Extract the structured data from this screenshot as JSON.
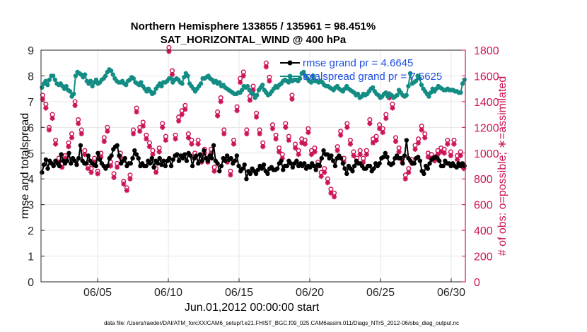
{
  "chart_data": {
    "type": "line",
    "title_line1": "Northern Hemisphere 133855 / 135961 = 98.451%",
    "title_line2": "SAT_HORIZONTAL_WIND @ 400 hPa",
    "xlabel": "Jun.01,2012 00:00:00 start",
    "ylabel_left": "rmse and totalspread",
    "ylabel_right": "# of obs: o=possible; ∗=assimilated",
    "footer": "data file: /Users/raeder/DAI/ATM_forcXX/CAM6_setup/f.e21.FHIST_BGC.f09_025.CAM6assim.011/Diags_NTrS_2012-06/obs_diag_output.nc",
    "x_ticks": [
      {
        "day": 5,
        "label": "06/05"
      },
      {
        "day": 10,
        "label": "06/10"
      },
      {
        "day": 15,
        "label": "06/15"
      },
      {
        "day": 20,
        "label": "06/20"
      },
      {
        "day": 25,
        "label": "06/25"
      },
      {
        "day": 30,
        "label": "06/30"
      }
    ],
    "xlim": [
      1,
      31
    ],
    "ylim_left": [
      0,
      9
    ],
    "y_ticks_left": [
      "0",
      "1",
      "2",
      "3",
      "4",
      "5",
      "6",
      "7",
      "8",
      "9"
    ],
    "ylim_right": [
      0,
      1800
    ],
    "y_ticks_right": [
      "0",
      "200",
      "400",
      "600",
      "800",
      "1000",
      "1200",
      "1400",
      "1600",
      "1800"
    ],
    "grid": true,
    "legend": [
      {
        "label": "rmse grand pr = 4.6645",
        "color": "#000000"
      },
      {
        "label": "totalspread grand pr = 7.5625",
        "color": "#138c84"
      }
    ],
    "colors": {
      "rmse": "#000000",
      "spread": "#138c84",
      "obs": "#cc1459",
      "right_axis": "#cc1459"
    },
    "series": [
      {
        "name": "rmse",
        "axis": "left",
        "values": [
          4.25,
          4.55,
          4.75,
          4.4,
          4.7,
          4.6,
          4.5,
          4.7,
          4.6,
          4.5,
          4.95,
          4.7,
          4.6,
          4.7,
          5.0,
          4.6,
          4.8,
          4.7,
          4.55,
          4.8,
          5.3,
          4.7,
          4.6,
          4.6,
          4.9,
          4.7,
          4.6,
          4.55,
          4.5,
          5.0,
          4.75,
          4.6,
          4.5,
          4.4,
          4.5,
          4.8,
          4.9,
          5.15,
          5.25,
          5.3,
          4.9,
          4.6,
          4.7,
          4.8,
          4.5,
          4.6,
          4.6,
          4.8,
          5.1,
          4.95,
          4.8,
          4.5,
          4.6,
          4.5,
          4.5,
          4.7,
          4.6,
          4.8,
          4.45,
          4.7,
          4.6,
          4.8,
          4.55,
          4.7,
          4.5,
          4.7,
          4.8,
          4.5,
          4.75,
          4.9,
          4.95,
          4.7,
          4.9,
          4.8,
          4.95,
          4.7,
          5.0,
          4.9,
          4.5,
          4.8,
          4.9,
          4.6,
          4.95,
          4.7,
          5.1,
          4.8,
          4.7,
          4.9,
          4.8,
          5.3,
          4.7,
          4.6,
          4.3,
          4.5,
          4.8,
          4.7,
          4.9,
          4.75,
          4.8,
          4.6,
          4.7,
          4.9,
          4.5,
          4.3,
          4.4,
          4.55,
          4.0,
          4.3,
          4.2,
          4.4,
          4.3,
          4.2,
          4.35,
          4.5,
          4.4,
          4.55,
          4.3,
          4.2,
          4.4,
          4.45,
          4.35,
          4.35,
          4.4,
          4.6,
          4.7,
          4.35,
          4.5,
          4.5,
          4.7,
          4.6,
          4.45,
          4.6,
          4.7,
          4.5,
          4.6,
          4.5,
          4.6,
          4.4,
          4.5,
          4.45,
          4.6,
          4.5,
          4.35,
          4.55,
          4.5,
          4.8,
          5.1,
          4.95,
          4.95,
          4.8,
          4.9,
          4.7,
          4.5,
          4.8,
          4.9,
          4.8,
          4.6,
          4.4,
          4.2,
          4.5,
          4.4,
          4.3,
          4.5,
          4.7,
          4.6,
          4.6,
          4.5,
          4.4,
          4.4,
          4.5,
          4.5,
          4.3,
          4.4,
          4.6,
          4.5,
          4.6,
          4.8,
          4.85,
          5.0,
          4.85,
          4.6,
          4.55,
          4.6,
          4.8,
          4.9,
          4.8,
          4.8,
          4.6,
          4.9,
          5.5,
          4.8,
          4.7,
          4.6,
          4.6,
          4.8,
          4.85,
          4.7,
          4.3,
          4.2,
          4.5,
          4.4,
          4.6,
          4.75,
          4.8,
          4.85,
          4.8,
          4.7,
          4.5,
          4.5,
          4.7,
          4.6,
          4.6,
          4.5,
          4.6,
          4.5,
          4.45,
          4.6,
          4.5,
          4.6,
          4.5
        ]
      },
      {
        "name": "totalspread",
        "axis": "left",
        "values": [
          7.55,
          7.7,
          7.8,
          7.65,
          7.85,
          8.0,
          8.0,
          7.85,
          7.7,
          7.65,
          7.7,
          7.6,
          7.5,
          7.6,
          7.45,
          7.4,
          7.2,
          7.3,
          8.0,
          8.15,
          8.1,
          8.05,
          7.95,
          8.05,
          7.8,
          7.7,
          7.8,
          7.6,
          7.75,
          7.85,
          7.7,
          7.75,
          7.85,
          7.9,
          8.0,
          8.15,
          8.25,
          8.2,
          8.05,
          7.9,
          7.8,
          7.75,
          7.75,
          7.8,
          7.7,
          7.65,
          7.8,
          7.85,
          7.95,
          7.9,
          7.75,
          7.7,
          7.65,
          7.75,
          7.6,
          7.5,
          7.4,
          7.5,
          7.4,
          7.3,
          7.35,
          7.5,
          7.6,
          7.7,
          7.6,
          7.75,
          7.75,
          7.8,
          7.9,
          7.9,
          7.75,
          7.85,
          7.9,
          7.85,
          7.75,
          7.7,
          7.95,
          8.1,
          8.0,
          7.7,
          7.6,
          7.5,
          7.4,
          7.5,
          7.6,
          7.7,
          7.9,
          7.9,
          7.95,
          8.0,
          7.9,
          7.85,
          7.75,
          7.8,
          7.7,
          7.75,
          7.6,
          7.65,
          7.55,
          7.5,
          7.45,
          7.4,
          7.35,
          7.3,
          7.3,
          7.35,
          7.35,
          7.45,
          7.6,
          7.55,
          7.6,
          7.45,
          7.35,
          7.3,
          7.15,
          7.25,
          7.45,
          7.55,
          7.65,
          7.45,
          7.35,
          7.25,
          7.3,
          7.4,
          7.5,
          7.6,
          7.55,
          7.65,
          7.7,
          7.8,
          7.85,
          7.8,
          7.75,
          7.85,
          7.8,
          7.85,
          7.85,
          7.8,
          7.9,
          8.1,
          8.15,
          8.0,
          7.9,
          7.8,
          7.75,
          8.0,
          7.8,
          7.8,
          7.75,
          7.8,
          7.75,
          7.65,
          7.6,
          7.6,
          7.55,
          7.5,
          7.45,
          7.55,
          7.6,
          7.5,
          7.45,
          7.4,
          7.5,
          7.6,
          7.5,
          7.45,
          7.4,
          7.35,
          7.25,
          7.3,
          7.15,
          7.2,
          7.3,
          7.25,
          7.3,
          7.4,
          7.5,
          7.55,
          7.4,
          7.3,
          7.25,
          7.15,
          7.2,
          7.3,
          7.35,
          7.2,
          7.3,
          7.25,
          7.15,
          7.2,
          7.25,
          7.45,
          7.35,
          7.25,
          7.2,
          7.25,
          7.6,
          8.1,
          7.7,
          7.75,
          7.8,
          8.0,
          7.9,
          7.65,
          7.5,
          7.4,
          7.3,
          7.2,
          7.35,
          7.5,
          7.4,
          7.5,
          7.6,
          7.55,
          7.5,
          7.45,
          7.45,
          7.5,
          7.45,
          7.45,
          7.45,
          7.4,
          7.4,
          7.35,
          7.35,
          7.7,
          7.85
        ]
      },
      {
        "name": "possible",
        "axis": "right",
        "marker": "o",
        "values": [
          1450,
          1380,
          1200,
          1300,
          1100,
          960,
          920,
          980,
          1080,
          1150,
          1400,
          1260,
          1180,
          1020,
          900,
          880,
          960,
          860,
          1000,
          1120,
          1200,
          930,
          840,
          920,
          1000,
          780,
          730,
          830,
          1180,
          1350,
          1200,
          1240,
          1140,
          1080,
          1020,
          880,
          1040,
          1230,
          1130,
          1820,
          1640,
          1140,
          1280,
          1330,
          1370,
          1150,
          1100,
          1000,
          1100,
          960,
          1030,
          960,
          1030,
          890,
          1320,
          1430,
          1180,
          960,
          860,
          1100,
          1360,
          1580,
          1630,
          1180,
          1440,
          1520,
          1310,
          1180,
          1080,
          1700,
          1590,
          1220,
          1140,
          1040,
          990,
          1230,
          1130,
          1450,
          1070,
          1020,
          1110,
          1100,
          1190,
          1020,
          1040,
          930,
          850,
          880,
          800,
          720,
          690,
          1050,
          1170,
          960,
          1230,
          1100,
          1010,
          960,
          1020,
          960,
          1020,
          1260,
          1110,
          1130,
          1220,
          1190,
          1300,
          1460,
          1380,
          1120,
          1040,
          960,
          830,
          880,
          950,
          1060,
          1110,
          1210,
          1150,
          1000,
          990,
          970,
          1020,
          1040,
          1030,
          1100,
          1010,
          1100,
          980,
          1010,
          910
        ]
      },
      {
        "name": "assimilated",
        "axis": "right",
        "marker": "*",
        "values": [
          1420,
          1350,
          1180,
          1270,
          1070,
          930,
          890,
          960,
          1050,
          1120,
          1370,
          1230,
          1150,
          990,
          880,
          850,
          930,
          840,
          970,
          1090,
          1170,
          900,
          810,
          890,
          970,
          760,
          710,
          800,
          1150,
          1320,
          1170,
          1210,
          1110,
          1050,
          990,
          850,
          1010,
          1200,
          1100,
          1790,
          1610,
          1110,
          1250,
          1300,
          1340,
          1120,
          1070,
          970,
          1070,
          930,
          1000,
          930,
          1000,
          860,
          1290,
          1400,
          1150,
          930,
          830,
          1070,
          1330,
          1550,
          1600,
          1150,
          1410,
          1490,
          1280,
          1150,
          1050,
          1670,
          1560,
          1190,
          1110,
          1010,
          960,
          1200,
          1100,
          1420,
          1040,
          990,
          1080,
          1070,
          1160,
          990,
          1010,
          900,
          820,
          850,
          770,
          690,
          660,
          1020,
          1140,
          930,
          1200,
          1070,
          980,
          930,
          990,
          930,
          990,
          1230,
          1080,
          1100,
          1190,
          1160,
          1270,
          1430,
          1350,
          1090,
          1010,
          930,
          800,
          850,
          920,
          1030,
          1080,
          1180,
          1120,
          970,
          960,
          940,
          990,
          1010,
          1000,
          1070,
          980,
          1070,
          950,
          980,
          880
        ]
      }
    ]
  }
}
